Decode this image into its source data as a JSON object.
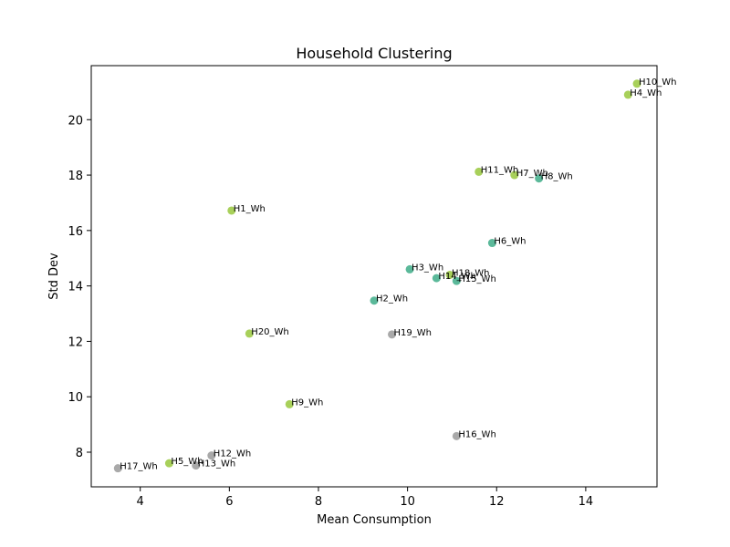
{
  "chart_data": {
    "type": "scatter",
    "title": "Household Clustering",
    "xlabel": "Mean Consumption",
    "ylabel": "Std Dev",
    "xlim": [
      2.9,
      15.6
    ],
    "ylim": [
      6.75,
      21.95
    ],
    "xticks": [
      4,
      6,
      8,
      10,
      12,
      14
    ],
    "yticks": [
      8,
      10,
      12,
      14,
      16,
      18,
      20
    ],
    "grid": false,
    "cluster_colors": {
      "A": "#a8d05a",
      "B": "#5bb99a",
      "C": "#a9a9a9"
    },
    "points": [
      {
        "label": "H1_Wh",
        "x": 6.05,
        "y": 16.72,
        "cluster": "A"
      },
      {
        "label": "H2_Wh",
        "x": 9.25,
        "y": 13.47,
        "cluster": "B"
      },
      {
        "label": "H3_Wh",
        "x": 10.05,
        "y": 14.6,
        "cluster": "B"
      },
      {
        "label": "H4_Wh",
        "x": 14.95,
        "y": 20.9,
        "cluster": "A"
      },
      {
        "label": "H5_Wh",
        "x": 4.65,
        "y": 7.6,
        "cluster": "A"
      },
      {
        "label": "H6_Wh",
        "x": 11.9,
        "y": 15.55,
        "cluster": "B"
      },
      {
        "label": "H7_Wh",
        "x": 12.4,
        "y": 18.0,
        "cluster": "A"
      },
      {
        "label": "H8_Wh",
        "x": 12.95,
        "y": 17.88,
        "cluster": "B"
      },
      {
        "label": "H9_Wh",
        "x": 7.35,
        "y": 9.73,
        "cluster": "A"
      },
      {
        "label": "H10_Wh",
        "x": 15.15,
        "y": 21.3,
        "cluster": "A"
      },
      {
        "label": "H11_Wh",
        "x": 11.6,
        "y": 18.12,
        "cluster": "A"
      },
      {
        "label": "H12_Wh",
        "x": 5.6,
        "y": 7.88,
        "cluster": "C"
      },
      {
        "label": "H13_Wh",
        "x": 5.25,
        "y": 7.52,
        "cluster": "C"
      },
      {
        "label": "H14_Wh",
        "x": 10.65,
        "y": 14.28,
        "cluster": "B"
      },
      {
        "label": "H15_Wh",
        "x": 11.1,
        "y": 14.18,
        "cluster": "B"
      },
      {
        "label": "H16_Wh",
        "x": 11.1,
        "y": 8.58,
        "cluster": "C"
      },
      {
        "label": "H17_Wh",
        "x": 3.5,
        "y": 7.42,
        "cluster": "C"
      },
      {
        "label": "H18_Wh",
        "x": 10.95,
        "y": 14.4,
        "cluster": "A"
      },
      {
        "label": "H19_Wh",
        "x": 9.65,
        "y": 12.25,
        "cluster": "C"
      },
      {
        "label": "H20_Wh",
        "x": 6.45,
        "y": 12.28,
        "cluster": "A"
      }
    ]
  }
}
